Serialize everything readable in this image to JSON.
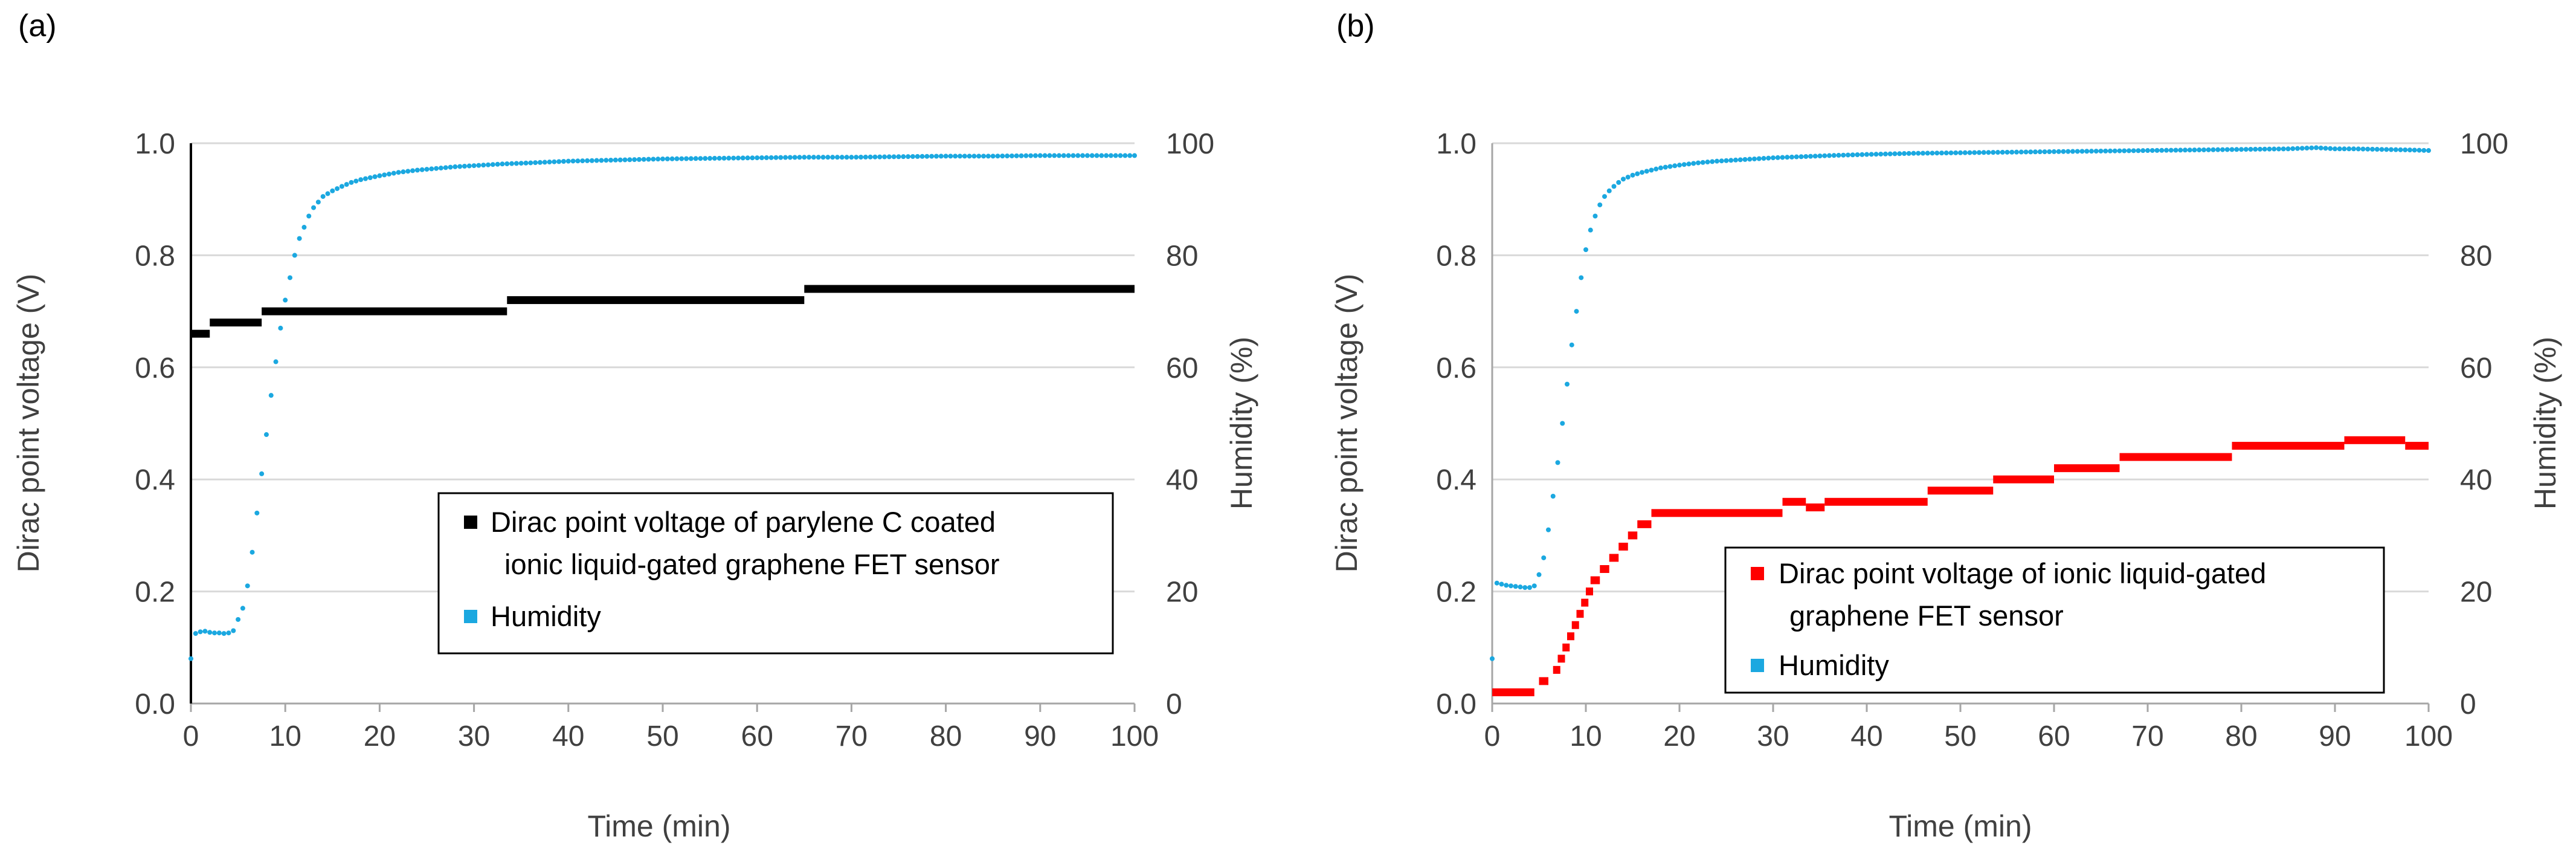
{
  "colors": {
    "humidity": "#1BA8E0",
    "dirac_a": "#000000",
    "dirac_b": "#FF0000",
    "grid": "#D9D9D9",
    "axis": "#A6A6A6"
  },
  "chart_data": [
    {
      "panel": "(a)",
      "type": "scatter",
      "xlabel": "Time (min)",
      "ylabel": "Dirac point voltage  (V)",
      "y2label": "Humidity (%)",
      "xlim": [
        0,
        100
      ],
      "ylim": [
        0,
        1.0
      ],
      "y2lim": [
        0,
        100
      ],
      "xticks": [
        "0",
        "10",
        "20",
        "30",
        "40",
        "50",
        "60",
        "70",
        "80",
        "90",
        "100"
      ],
      "yticks": [
        "0.0",
        "0.2",
        "0.4",
        "0.6",
        "0.8",
        "1.0"
      ],
      "y2ticks": [
        "0",
        "20",
        "40",
        "60",
        "80",
        "100"
      ],
      "grid": true,
      "legend_position": "bottom-right",
      "legend": {
        "dirac_line1": "Dirac point voltage of parylene C coated",
        "dirac_line2": "ionic liquid-gated graphene FET sensor",
        "humidity": "Humidity"
      },
      "series": [
        {
          "name": "Dirac point voltage of parylene C coated ionic liquid-gated graphene FET sensor",
          "axis": "left",
          "color": "#000000",
          "marker": "square",
          "segments": [
            {
              "x_start": 0,
              "x_end": 2,
              "y": 0.66
            },
            {
              "x_start": 2,
              "x_end": 7.5,
              "y": 0.68
            },
            {
              "x_start": 7.5,
              "x_end": 33.5,
              "y": 0.7
            },
            {
              "x_start": 33.5,
              "x_end": 65,
              "y": 0.72
            },
            {
              "x_start": 65,
              "x_end": 100,
              "y": 0.74
            }
          ]
        },
        {
          "name": "Humidity",
          "axis": "right",
          "color": "#1BA8E0",
          "marker": "dot",
          "x": [
            0,
            0.5,
            1,
            1.5,
            2,
            2.5,
            3,
            3.5,
            4,
            4.5,
            5,
            5.5,
            6,
            6.5,
            7,
            7.5,
            8,
            8.5,
            9,
            9.5,
            10,
            10.5,
            11,
            11.5,
            12,
            12.5,
            13,
            13.5,
            14,
            15,
            16,
            17,
            18,
            20,
            22,
            24,
            26,
            28,
            30,
            33,
            36,
            40,
            45,
            50,
            55,
            60,
            65,
            70,
            75,
            80,
            85,
            90,
            95,
            100
          ],
          "y": [
            8,
            12.5,
            12.8,
            12.9,
            12.7,
            12.6,
            12.6,
            12.5,
            12.6,
            13,
            15,
            17,
            21,
            27,
            34,
            41,
            48,
            55,
            61,
            67,
            72,
            76,
            80,
            83,
            85,
            87,
            88.5,
            89.5,
            90.5,
            91.5,
            92.3,
            93,
            93.5,
            94.2,
            94.8,
            95.2,
            95.5,
            95.8,
            96,
            96.3,
            96.5,
            96.8,
            97,
            97.2,
            97.3,
            97.4,
            97.5,
            97.5,
            97.6,
            97.7,
            97.7,
            97.8,
            97.8,
            97.8
          ]
        }
      ]
    },
    {
      "panel": "(b)",
      "type": "scatter",
      "xlabel": "Time (min)",
      "ylabel": "Dirac point voltage  (V)",
      "y2label": "Humidity (%)",
      "xlim": [
        0,
        100
      ],
      "ylim": [
        0,
        1.0
      ],
      "y2lim": [
        0,
        100
      ],
      "xticks": [
        "0",
        "10",
        "20",
        "30",
        "40",
        "50",
        "60",
        "70",
        "80",
        "90",
        "100"
      ],
      "yticks": [
        "0.0",
        "0.2",
        "0.4",
        "0.6",
        "0.8",
        "1.0"
      ],
      "y2ticks": [
        "0",
        "20",
        "40",
        "60",
        "80",
        "100"
      ],
      "grid": true,
      "legend_position": "bottom-left",
      "legend": {
        "dirac_line1": "Dirac point voltage of ionic liquid-gated",
        "dirac_line2": "graphene FET sensor",
        "humidity": "Humidity"
      },
      "series": [
        {
          "name": "Dirac point voltage of ionic liquid-gated graphene FET sensor",
          "axis": "left",
          "color": "#FF0000",
          "marker": "square",
          "segments": [
            {
              "x_start": 0,
              "x_end": 4.5,
              "y": 0.02
            },
            {
              "x_start": 5,
              "x_end": 6,
              "y": 0.04
            },
            {
              "x_start": 6.5,
              "x_end": 7,
              "y": 0.06
            },
            {
              "x_start": 7,
              "x_end": 7.5,
              "y": 0.08
            },
            {
              "x_start": 7.5,
              "x_end": 8,
              "y": 0.1
            },
            {
              "x_start": 8,
              "x_end": 8.5,
              "y": 0.12
            },
            {
              "x_start": 8.5,
              "x_end": 9,
              "y": 0.14
            },
            {
              "x_start": 9,
              "x_end": 9.5,
              "y": 0.16
            },
            {
              "x_start": 9.5,
              "x_end": 10,
              "y": 0.18
            },
            {
              "x_start": 10,
              "x_end": 10.5,
              "y": 0.2
            },
            {
              "x_start": 10.5,
              "x_end": 11.5,
              "y": 0.22
            },
            {
              "x_start": 11.5,
              "x_end": 12.5,
              "y": 0.24
            },
            {
              "x_start": 12.5,
              "x_end": 13.5,
              "y": 0.26
            },
            {
              "x_start": 13.5,
              "x_end": 14.5,
              "y": 0.28
            },
            {
              "x_start": 14.5,
              "x_end": 15.5,
              "y": 0.3
            },
            {
              "x_start": 15.5,
              "x_end": 17,
              "y": 0.32
            },
            {
              "x_start": 17,
              "x_end": 31,
              "y": 0.34
            },
            {
              "x_start": 31,
              "x_end": 33.5,
              "y": 0.36
            },
            {
              "x_start": 33.5,
              "x_end": 35.5,
              "y": 0.35
            },
            {
              "x_start": 35.5,
              "x_end": 46.5,
              "y": 0.36
            },
            {
              "x_start": 46.5,
              "x_end": 53.5,
              "y": 0.38
            },
            {
              "x_start": 53.5,
              "x_end": 60,
              "y": 0.4
            },
            {
              "x_start": 60,
              "x_end": 67,
              "y": 0.42
            },
            {
              "x_start": 67,
              "x_end": 79,
              "y": 0.44
            },
            {
              "x_start": 79,
              "x_end": 91,
              "y": 0.46
            },
            {
              "x_start": 91,
              "x_end": 97.5,
              "y": 0.47
            },
            {
              "x_start": 97.5,
              "x_end": 100,
              "y": 0.46
            }
          ]
        },
        {
          "name": "Humidity",
          "axis": "right",
          "color": "#1BA8E0",
          "marker": "dot",
          "x": [
            0,
            0.5,
            1,
            1.5,
            2,
            2.5,
            3,
            3.5,
            4,
            4.5,
            5,
            5.5,
            6,
            6.5,
            7,
            7.5,
            8,
            8.5,
            9,
            9.5,
            10,
            10.5,
            11,
            11.5,
            12,
            12.5,
            13,
            13.5,
            14,
            15,
            16,
            17,
            18,
            20,
            22,
            24,
            26,
            28,
            30,
            33,
            36,
            40,
            45,
            50,
            55,
            60,
            65,
            70,
            75,
            80,
            85,
            88,
            90,
            92,
            95,
            98,
            100
          ],
          "y": [
            8,
            21.5,
            21.3,
            21.1,
            21,
            20.9,
            20.8,
            20.7,
            20.7,
            21,
            23,
            26,
            31,
            37,
            43,
            50,
            57,
            64,
            70,
            76,
            81,
            84.5,
            87,
            89,
            90.5,
            91.5,
            92.3,
            93,
            93.6,
            94.3,
            94.8,
            95.2,
            95.6,
            96.1,
            96.5,
            96.8,
            97,
            97.2,
            97.4,
            97.6,
            97.8,
            98,
            98.2,
            98.3,
            98.4,
            98.5,
            98.6,
            98.7,
            98.8,
            98.9,
            99,
            99.2,
            99,
            99,
            98.9,
            98.8,
            98.7
          ]
        }
      ]
    }
  ]
}
